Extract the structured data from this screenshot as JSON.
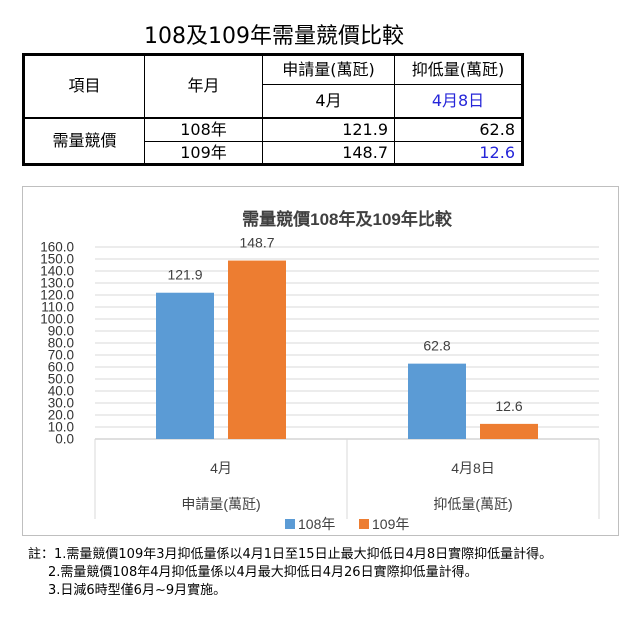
{
  "page_title": "108及109年需量競價比較",
  "table": {
    "h_item": "項目",
    "h_period": "年月",
    "h_apply": "申請量(萬瓩)",
    "h_suppress": "抑低量(萬瓩)",
    "sub_apply": "4月",
    "sub_suppress": "4月8日",
    "row_label": "需量競價",
    "rows": [
      {
        "year": "108年",
        "apply": "121.9",
        "suppress": "62.8"
      },
      {
        "year": "109年",
        "apply": "148.7",
        "suppress": "12.6"
      }
    ],
    "highlight_color": "#2626d9"
  },
  "chart_data": {
    "type": "bar",
    "title": "需量競價108年及109年比較",
    "categories": [
      {
        "top": "4月",
        "bottom": "申請量(萬瓩)"
      },
      {
        "top": "4月8日",
        "bottom": "抑低量(萬瓩)"
      }
    ],
    "series": [
      {
        "name": "108年",
        "values": [
          121.9,
          62.8
        ],
        "labels": [
          "121.9",
          "62.8"
        ],
        "color": "#5b9bd5"
      },
      {
        "name": "109年",
        "values": [
          148.7,
          12.6
        ],
        "labels": [
          "148.7",
          "12.6"
        ],
        "color": "#ed7d31"
      }
    ],
    "ylim": [
      0,
      160
    ],
    "ytick_step": 10,
    "ytick_labels": [
      "0.0",
      "10.0",
      "20.0",
      "30.0",
      "40.0",
      "50.0",
      "60.0",
      "70.0",
      "80.0",
      "90.0",
      "100.0",
      "110.0",
      "120.0",
      "130.0",
      "140.0",
      "150.0",
      "160.0"
    ],
    "grid": true,
    "legend": "bottom"
  },
  "notes": [
    "註：1.需量競價109年3月抑低量係以4月1日至15日止最大抑低日4月8日實際抑低量計得。",
    "2.需量競價108年4月抑低量係以4月最大抑低日4月26日實際抑低量計得。",
    "3.日減6時型僅6月~9月實施。"
  ]
}
